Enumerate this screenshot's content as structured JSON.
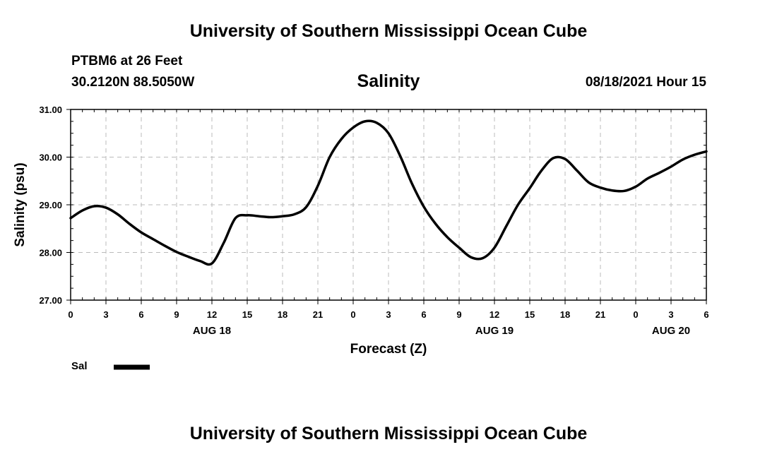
{
  "header": {
    "title": "University of Southern Mississippi Ocean Cube",
    "station": "PTBM6 at 26 Feet",
    "coords": "30.2120N  88.5050W",
    "chart_name": "Salinity",
    "datetime": "08/18/2021 Hour 15"
  },
  "footer": {
    "title": "University of Southern Mississippi Ocean Cube"
  },
  "legend": {
    "label": "Sal",
    "color": "#000000"
  },
  "chart_data": {
    "type": "line",
    "title": "Salinity",
    "xlabel": "Forecast (Z)",
    "ylabel": "Salinity (psu)",
    "ylim": [
      27,
      31
    ],
    "xlim": [
      0,
      54
    ],
    "y_ticks": [
      "27.00",
      "28.00",
      "29.00",
      "30.00",
      "31.00"
    ],
    "x_ticks": [
      "0",
      "3",
      "6",
      "9",
      "12",
      "15",
      "18",
      "21",
      "0",
      "3",
      "6",
      "9",
      "12",
      "15",
      "18",
      "21",
      "0",
      "3",
      "6"
    ],
    "date_labels": [
      {
        "label": "AUG 18",
        "at_hour": 12
      },
      {
        "label": "AUG 19",
        "at_hour": 36
      },
      {
        "label": "AUG 20",
        "at_hour": 51
      }
    ],
    "grid": true,
    "series": [
      {
        "name": "Sal",
        "x": [
          0,
          1,
          2,
          3,
          4,
          5,
          6,
          7,
          8,
          9,
          10,
          11,
          12,
          13,
          14,
          15,
          16,
          17,
          18,
          19,
          20,
          21,
          22,
          23,
          24,
          25,
          26,
          27,
          28,
          29,
          30,
          31,
          32,
          33,
          34,
          35,
          36,
          37,
          38,
          39,
          40,
          41,
          42,
          43,
          44,
          45,
          46,
          47,
          48,
          49,
          50,
          51,
          52,
          53,
          54
        ],
        "values": [
          28.72,
          28.88,
          28.97,
          28.94,
          28.8,
          28.6,
          28.42,
          28.28,
          28.14,
          28.01,
          27.91,
          27.82,
          27.77,
          28.2,
          28.72,
          28.78,
          28.76,
          28.74,
          28.76,
          28.8,
          28.95,
          29.4,
          30.0,
          30.38,
          30.62,
          30.75,
          30.72,
          30.5,
          30.02,
          29.44,
          28.96,
          28.6,
          28.32,
          28.1,
          27.9,
          27.88,
          28.1,
          28.55,
          29.0,
          29.35,
          29.72,
          29.98,
          29.96,
          29.72,
          29.47,
          29.36,
          29.3,
          29.29,
          29.38,
          29.55,
          29.67,
          29.8,
          29.95,
          30.05,
          30.12
        ]
      }
    ]
  }
}
